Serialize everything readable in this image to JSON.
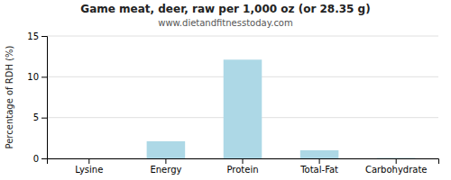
{
  "chart_data": {
    "type": "bar",
    "title": "Game meat, deer, raw per 1,000 oz (or 28.35 g)",
    "subtitle": "www.dietandfitnesstoday.com",
    "categories": [
      "Lysine",
      "Energy",
      "Protein",
      "Total-Fat",
      "Carbohydrate"
    ],
    "values": [
      0.0,
      2.1,
      12.1,
      1.0,
      0.05
    ],
    "color": "#add8e6",
    "ylabel": "Percentage of RDH (%)",
    "ylim": [
      0,
      15
    ],
    "yticks": [
      0,
      5,
      10,
      15
    ],
    "grid": true
  }
}
